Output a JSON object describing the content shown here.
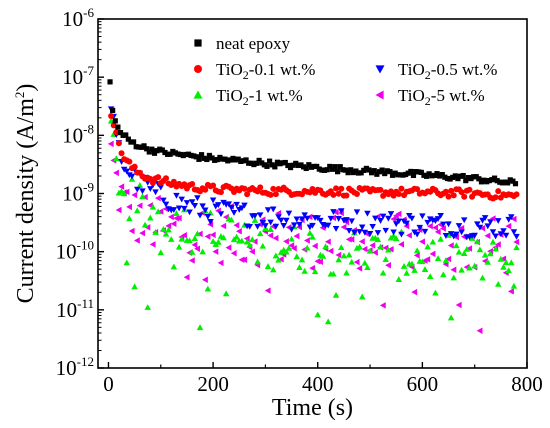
{
  "chart_data": {
    "type": "scatter",
    "title": "",
    "xlabel": "Time (s)",
    "ylabel": "Current density (A/m²)",
    "ylabel_parts": {
      "main": "Current density (A/m",
      "sup": "2",
      "close": ")"
    },
    "x_range": [
      -20,
      800
    ],
    "y_range_log10": [
      -12,
      -6
    ],
    "y_scale": "log",
    "grid": false,
    "legend_position": "top",
    "x_ticks": [
      {
        "value": 0,
        "label": "0"
      },
      {
        "value": 200,
        "label": "200"
      },
      {
        "value": 400,
        "label": "400"
      },
      {
        "value": 600,
        "label": "600"
      },
      {
        "value": 800,
        "label": "800"
      }
    ],
    "y_ticks": [
      {
        "exp": -6,
        "base": "10",
        "sup": "-6"
      },
      {
        "exp": -7,
        "base": "10",
        "sup": "-7"
      },
      {
        "exp": -8,
        "base": "10",
        "sup": "-8"
      },
      {
        "exp": -9,
        "base": "10",
        "sup": "-9"
      },
      {
        "exp": -10,
        "base": "10",
        "sup": "-10"
      },
      {
        "exp": -11,
        "base": "10",
        "sup": "-11"
      },
      {
        "exp": -12,
        "base": "10",
        "sup": "-12"
      }
    ],
    "series": [
      {
        "name": "neat epoxy",
        "name_parts": {
          "pre": "neat epoxy",
          "sub": "",
          "post": ""
        },
        "marker": "square",
        "color": "#000000",
        "x": [
          3,
          10,
          20,
          40,
          70,
          100,
          150,
          200,
          300,
          400,
          500,
          600,
          700,
          780
        ],
        "y": [
          8e-08,
          2e-08,
          1.2e-08,
          8e-09,
          6e-09,
          5.2e-09,
          4.5e-09,
          4e-09,
          3.3e-09,
          2.8e-09,
          2.4e-09,
          2.1e-09,
          1.8e-09,
          1.5e-09
        ]
      },
      {
        "name": "TiO2-0.1 wt.%",
        "name_parts": {
          "pre": "TiO",
          "sub": "2",
          "post": "-0.1 wt.%"
        },
        "marker": "circle",
        "color": "#ff0000",
        "x": [
          5,
          15,
          30,
          50,
          80,
          120,
          160,
          200,
          300,
          400,
          500,
          600,
          700,
          780
        ],
        "y": [
          2.5e-08,
          1e-08,
          4e-09,
          2.5e-09,
          1.8e-09,
          1.5e-09,
          1.3e-09,
          1.2e-09,
          1.1e-09,
          1.1e-09,
          1.05e-09,
          1.05e-09,
          1e-09,
          9e-10
        ]
      },
      {
        "name": "TiO2-0.5 wt.%",
        "name_parts": {
          "pre": "TiO",
          "sub": "2",
          "post": "-0.5 wt.%"
        },
        "marker": "triangle-down",
        "color": "#0000ff",
        "x": [
          5,
          15,
          30,
          60,
          100,
          150,
          200,
          300,
          400,
          500,
          600,
          700,
          780
        ],
        "y": [
          2.5e-08,
          8e-09,
          3e-09,
          1.5e-09,
          9e-10,
          6e-10,
          5e-10,
          4e-10,
          3.5e-10,
          3.2e-10,
          3e-10,
          2.8e-10,
          2.7e-10
        ]
      },
      {
        "name": "TiO2-1 wt.%",
        "name_parts": {
          "pre": "TiO",
          "sub": "2",
          "post": "-1 wt.%"
        },
        "marker": "triangle-up",
        "color": "#00ee00",
        "x": [
          5,
          15,
          30,
          50,
          80,
          120,
          160,
          200,
          300,
          400,
          500,
          600,
          700,
          780
        ],
        "y": [
          1e-08,
          3e-09,
          1e-09,
          6e-10,
          4.5e-10,
          3.5e-10,
          2.5e-10,
          2e-10,
          1.3e-10,
          1.1e-10,
          9e-11,
          8e-11,
          7e-11,
          6e-11
        ]
      },
      {
        "name": "TiO2-5 wt.%",
        "name_parts": {
          "pre": "TiO",
          "sub": "2",
          "post": "-5 wt.%"
        },
        "marker": "triangle-left",
        "color": "#ee00ee",
        "x": [
          5,
          15,
          30,
          50,
          80,
          120,
          160,
          200,
          300,
          400,
          500,
          600,
          700,
          780
        ],
        "y": [
          5e-09,
          1.5e-09,
          6e-10,
          4e-10,
          3e-10,
          2.5e-10,
          2.2e-10,
          2e-10,
          1.8e-10,
          1.6e-10,
          1.5e-10,
          1.4e-10,
          1.3e-10,
          1.2e-10
        ]
      }
    ]
  }
}
